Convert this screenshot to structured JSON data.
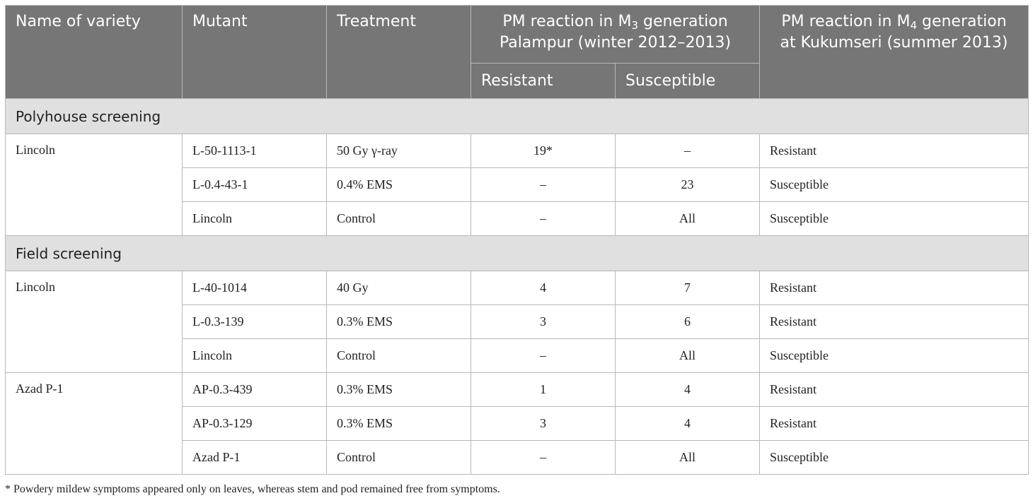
{
  "table": {
    "headers": {
      "variety": "Name of variety",
      "mutant": "Mutant",
      "treatment": "Treatment",
      "m3_line1_pre": "PM reaction in M",
      "m3_sub": "3",
      "m3_line1_post": " generation",
      "m3_line2": "Palampur (winter 2012–2013)",
      "m4_line1_pre": "PM reaction in M",
      "m4_sub": "4",
      "m4_line1_post": " generation",
      "m4_line2": "at Kukumseri (summer 2013)",
      "resistant": "Resistant",
      "susceptible": "Susceptible"
    },
    "sections": [
      {
        "title": "Polyhouse screening",
        "groups": [
          {
            "variety": "Lincoln",
            "rows": [
              {
                "mutant": "L-50-1113-1",
                "treatment": "50 Gy γ-ray",
                "resistant": "19*",
                "susceptible": "–",
                "m4": "Resistant"
              },
              {
                "mutant": "L-0.4-43-1",
                "treatment": "0.4% EMS",
                "resistant": "–",
                "susceptible": "23",
                "m4": "Susceptible"
              },
              {
                "mutant": "Lincoln",
                "treatment": "Control",
                "resistant": "–",
                "susceptible": "All",
                "m4": "Susceptible"
              }
            ]
          }
        ]
      },
      {
        "title": "Field screening",
        "groups": [
          {
            "variety": "Lincoln",
            "rows": [
              {
                "mutant": "L-40-1014",
                "treatment": "40 Gy",
                "resistant": "4",
                "susceptible": "7",
                "m4": "Resistant"
              },
              {
                "mutant": "L-0.3-139",
                "treatment": "0.3% EMS",
                "resistant": "3",
                "susceptible": "6",
                "m4": "Resistant"
              },
              {
                "mutant": "Lincoln",
                "treatment": "Control",
                "resistant": "–",
                "susceptible": "All",
                "m4": "Susceptible"
              }
            ]
          },
          {
            "variety": "Azad P-1",
            "rows": [
              {
                "mutant": "AP-0.3-439",
                "treatment": "0.3% EMS",
                "resistant": "1",
                "susceptible": "4",
                "m4": "Resistant"
              },
              {
                "mutant": "AP-0.3-129",
                "treatment": "0.3% EMS",
                "resistant": "3",
                "susceptible": "4",
                "m4": "Resistant"
              },
              {
                "mutant": "Azad P-1",
                "treatment": "Control",
                "resistant": "–",
                "susceptible": "All",
                "m4": "Susceptible"
              }
            ]
          }
        ]
      }
    ]
  },
  "footnote": "* Powdery mildew symptoms appeared only on leaves, whereas stem and pod remained free from symptoms."
}
